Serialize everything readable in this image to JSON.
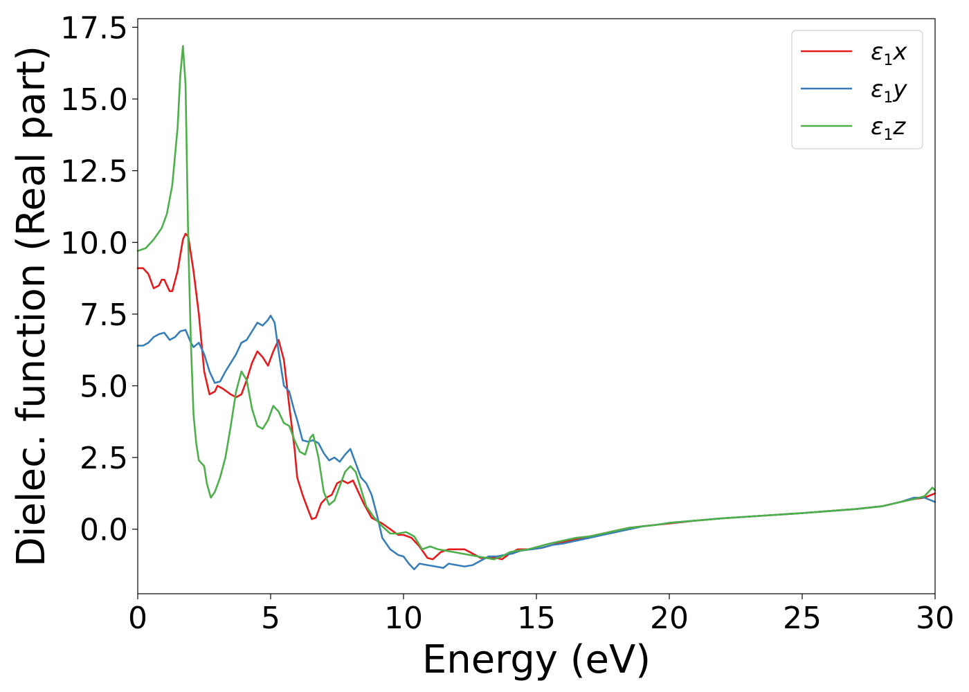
{
  "chart_data": {
    "type": "line",
    "title": "",
    "xlabel": "Energy (eV)",
    "ylabel": "Dielec. function (Real part)",
    "xlim": [
      0,
      30
    ],
    "ylim": [
      -2.25,
      17.8
    ],
    "xticks": [
      0,
      5,
      10,
      15,
      20,
      25,
      30
    ],
    "xtick_labels": [
      "0",
      "5",
      "10",
      "15",
      "20",
      "25",
      "30"
    ],
    "yticks": [
      0.0,
      2.5,
      5.0,
      7.5,
      10.0,
      12.5,
      15.0,
      17.5
    ],
    "ytick_labels": [
      "0.0",
      "2.5",
      "5.0",
      "7.5",
      "10.0",
      "12.5",
      "15.0",
      "17.5"
    ],
    "grid": false,
    "legend_position": "top-right",
    "series": [
      {
        "name": "ε1x",
        "legend_main": "ε",
        "legend_sub": "1",
        "legend_var": "x",
        "color": "#e41a1c",
        "points": [
          [
            0,
            9.1
          ],
          [
            0.2,
            9.1
          ],
          [
            0.4,
            8.9
          ],
          [
            0.6,
            8.4
          ],
          [
            0.8,
            8.5
          ],
          [
            0.9,
            8.7
          ],
          [
            1.0,
            8.7
          ],
          [
            1.1,
            8.5
          ],
          [
            1.2,
            8.3
          ],
          [
            1.3,
            8.3
          ],
          [
            1.5,
            9.0
          ],
          [
            1.7,
            10.1
          ],
          [
            1.8,
            10.3
          ],
          [
            1.9,
            10.2
          ],
          [
            2.1,
            9.0
          ],
          [
            2.3,
            7.5
          ],
          [
            2.5,
            5.5
          ],
          [
            2.7,
            4.7
          ],
          [
            2.9,
            4.8
          ],
          [
            3.0,
            5.0
          ],
          [
            3.2,
            4.9
          ],
          [
            3.5,
            4.7
          ],
          [
            3.7,
            4.6
          ],
          [
            3.9,
            4.7
          ],
          [
            4.1,
            5.2
          ],
          [
            4.3,
            5.8
          ],
          [
            4.5,
            6.2
          ],
          [
            4.7,
            6.0
          ],
          [
            4.9,
            5.7
          ],
          [
            5.1,
            6.2
          ],
          [
            5.3,
            6.6
          ],
          [
            5.5,
            5.9
          ],
          [
            5.7,
            4.3
          ],
          [
            5.9,
            2.8
          ],
          [
            6.0,
            1.8
          ],
          [
            6.2,
            1.2
          ],
          [
            6.4,
            0.7
          ],
          [
            6.55,
            0.35
          ],
          [
            6.7,
            0.4
          ],
          [
            6.9,
            0.9
          ],
          [
            7.1,
            1.1
          ],
          [
            7.3,
            1.2
          ],
          [
            7.5,
            1.6
          ],
          [
            7.7,
            1.7
          ],
          [
            7.9,
            1.6
          ],
          [
            8.1,
            1.7
          ],
          [
            8.3,
            1.3
          ],
          [
            8.5,
            0.9
          ],
          [
            8.8,
            0.4
          ],
          [
            9.2,
            0.2
          ],
          [
            9.5,
            0.0
          ],
          [
            9.8,
            -0.2
          ],
          [
            10.0,
            -0.2
          ],
          [
            10.3,
            -0.3
          ],
          [
            10.6,
            -0.6
          ],
          [
            10.9,
            -1.0
          ],
          [
            11.1,
            -1.05
          ],
          [
            11.4,
            -0.8
          ],
          [
            11.7,
            -0.7
          ],
          [
            12.0,
            -0.7
          ],
          [
            12.3,
            -0.7
          ],
          [
            12.6,
            -0.85
          ],
          [
            12.9,
            -1.0
          ],
          [
            13.2,
            -1.0
          ],
          [
            13.5,
            -1.0
          ],
          [
            13.7,
            -1.05
          ],
          [
            14.0,
            -0.85
          ],
          [
            14.3,
            -0.7
          ],
          [
            14.8,
            -0.7
          ],
          [
            15.2,
            -0.65
          ],
          [
            15.6,
            -0.55
          ],
          [
            16.0,
            -0.45
          ],
          [
            16.5,
            -0.35
          ],
          [
            17.0,
            -0.25
          ],
          [
            17.5,
            -0.15
          ],
          [
            18.0,
            -0.05
          ],
          [
            18.5,
            0.05
          ],
          [
            19.0,
            0.1
          ],
          [
            19.5,
            0.15
          ],
          [
            20.0,
            0.2
          ],
          [
            21.0,
            0.3
          ],
          [
            22.0,
            0.38
          ],
          [
            23.0,
            0.44
          ],
          [
            24.0,
            0.5
          ],
          [
            25.0,
            0.56
          ],
          [
            26.0,
            0.63
          ],
          [
            27.0,
            0.7
          ],
          [
            28.0,
            0.8
          ],
          [
            28.7,
            0.95
          ],
          [
            29.2,
            1.05
          ],
          [
            29.6,
            1.1
          ],
          [
            30.0,
            1.25
          ]
        ]
      },
      {
        "name": "ε1y",
        "legend_main": "ε",
        "legend_sub": "1",
        "legend_var": "y",
        "color": "#377eb8",
        "points": [
          [
            0,
            6.4
          ],
          [
            0.2,
            6.4
          ],
          [
            0.4,
            6.5
          ],
          [
            0.6,
            6.7
          ],
          [
            0.8,
            6.8
          ],
          [
            1.0,
            6.85
          ],
          [
            1.2,
            6.6
          ],
          [
            1.4,
            6.7
          ],
          [
            1.6,
            6.9
          ],
          [
            1.8,
            6.95
          ],
          [
            2.0,
            6.5
          ],
          [
            2.1,
            6.35
          ],
          [
            2.3,
            6.5
          ],
          [
            2.5,
            6.1
          ],
          [
            2.7,
            5.5
          ],
          [
            2.9,
            5.1
          ],
          [
            3.1,
            5.15
          ],
          [
            3.3,
            5.5
          ],
          [
            3.5,
            5.8
          ],
          [
            3.7,
            6.1
          ],
          [
            3.9,
            6.5
          ],
          [
            4.1,
            6.6
          ],
          [
            4.3,
            6.9
          ],
          [
            4.5,
            7.2
          ],
          [
            4.7,
            7.1
          ],
          [
            4.9,
            7.3
          ],
          [
            5.0,
            7.45
          ],
          [
            5.15,
            7.2
          ],
          [
            5.3,
            6.2
          ],
          [
            5.5,
            5.0
          ],
          [
            5.7,
            4.8
          ],
          [
            5.9,
            4.1
          ],
          [
            6.0,
            3.8
          ],
          [
            6.2,
            3.1
          ],
          [
            6.4,
            3.05
          ],
          [
            6.6,
            3.1
          ],
          [
            6.8,
            3.0
          ],
          [
            7.0,
            2.65
          ],
          [
            7.2,
            2.4
          ],
          [
            7.4,
            2.5
          ],
          [
            7.6,
            2.35
          ],
          [
            7.8,
            2.6
          ],
          [
            8.0,
            2.8
          ],
          [
            8.2,
            2.3
          ],
          [
            8.4,
            1.8
          ],
          [
            8.6,
            1.6
          ],
          [
            8.8,
            1.2
          ],
          [
            9.0,
            0.5
          ],
          [
            9.2,
            -0.3
          ],
          [
            9.5,
            -0.7
          ],
          [
            9.8,
            -0.9
          ],
          [
            10.0,
            -0.95
          ],
          [
            10.2,
            -1.2
          ],
          [
            10.4,
            -1.4
          ],
          [
            10.6,
            -1.2
          ],
          [
            10.9,
            -1.25
          ],
          [
            11.2,
            -1.3
          ],
          [
            11.5,
            -1.35
          ],
          [
            11.7,
            -1.2
          ],
          [
            12.0,
            -1.25
          ],
          [
            12.3,
            -1.3
          ],
          [
            12.6,
            -1.25
          ],
          [
            12.9,
            -1.1
          ],
          [
            13.2,
            -0.95
          ],
          [
            13.5,
            -0.95
          ],
          [
            13.8,
            -0.9
          ],
          [
            14.1,
            -0.85
          ],
          [
            14.4,
            -0.75
          ],
          [
            14.8,
            -0.7
          ],
          [
            15.2,
            -0.65
          ],
          [
            15.6,
            -0.55
          ],
          [
            16.0,
            -0.5
          ],
          [
            16.5,
            -0.4
          ],
          [
            17.0,
            -0.3
          ],
          [
            17.5,
            -0.2
          ],
          [
            18.0,
            -0.1
          ],
          [
            18.5,
            0.0
          ],
          [
            19.0,
            0.1
          ],
          [
            19.5,
            0.15
          ],
          [
            20.0,
            0.22
          ],
          [
            21.0,
            0.3
          ],
          [
            22.0,
            0.38
          ],
          [
            23.0,
            0.44
          ],
          [
            24.0,
            0.5
          ],
          [
            25.0,
            0.56
          ],
          [
            26.0,
            0.63
          ],
          [
            27.0,
            0.7
          ],
          [
            28.0,
            0.8
          ],
          [
            28.7,
            0.95
          ],
          [
            29.2,
            1.1
          ],
          [
            29.6,
            1.1
          ],
          [
            30.0,
            0.95
          ]
        ]
      },
      {
        "name": "ε1z",
        "legend_main": "ε",
        "legend_sub": "1",
        "legend_var": "z",
        "color": "#4daf4a",
        "points": [
          [
            0,
            9.7
          ],
          [
            0.3,
            9.8
          ],
          [
            0.6,
            10.1
          ],
          [
            0.9,
            10.5
          ],
          [
            1.1,
            11.0
          ],
          [
            1.3,
            12.0
          ],
          [
            1.5,
            14.0
          ],
          [
            1.6,
            15.8
          ],
          [
            1.7,
            16.85
          ],
          [
            1.8,
            15.5
          ],
          [
            1.9,
            10.0
          ],
          [
            2.0,
            6.5
          ],
          [
            2.1,
            4.0
          ],
          [
            2.2,
            3.0
          ],
          [
            2.3,
            2.4
          ],
          [
            2.5,
            2.2
          ],
          [
            2.6,
            1.6
          ],
          [
            2.75,
            1.1
          ],
          [
            2.9,
            1.3
          ],
          [
            3.1,
            1.8
          ],
          [
            3.3,
            2.5
          ],
          [
            3.5,
            3.6
          ],
          [
            3.7,
            4.8
          ],
          [
            3.9,
            5.5
          ],
          [
            4.1,
            5.2
          ],
          [
            4.3,
            4.2
          ],
          [
            4.5,
            3.6
          ],
          [
            4.7,
            3.5
          ],
          [
            4.9,
            3.8
          ],
          [
            5.1,
            4.3
          ],
          [
            5.3,
            4.1
          ],
          [
            5.5,
            3.7
          ],
          [
            5.7,
            3.6
          ],
          [
            5.9,
            3.1
          ],
          [
            6.1,
            2.7
          ],
          [
            6.3,
            2.6
          ],
          [
            6.5,
            3.2
          ],
          [
            6.6,
            3.3
          ],
          [
            6.8,
            2.5
          ],
          [
            7.0,
            1.3
          ],
          [
            7.2,
            0.85
          ],
          [
            7.4,
            1.0
          ],
          [
            7.6,
            1.5
          ],
          [
            7.8,
            2.0
          ],
          [
            8.0,
            2.2
          ],
          [
            8.2,
            2.0
          ],
          [
            8.4,
            1.4
          ],
          [
            8.6,
            0.8
          ],
          [
            8.9,
            0.4
          ],
          [
            9.2,
            0.1
          ],
          [
            9.5,
            -0.15
          ],
          [
            9.8,
            -0.15
          ],
          [
            10.1,
            -0.1
          ],
          [
            10.4,
            -0.25
          ],
          [
            10.7,
            -0.7
          ],
          [
            11.0,
            -0.6
          ],
          [
            11.3,
            -0.7
          ],
          [
            11.6,
            -0.75
          ],
          [
            11.9,
            -0.8
          ],
          [
            12.2,
            -0.85
          ],
          [
            12.5,
            -0.9
          ],
          [
            12.8,
            -0.95
          ],
          [
            13.1,
            -1.0
          ],
          [
            13.4,
            -1.05
          ],
          [
            13.7,
            -0.95
          ],
          [
            14.0,
            -0.8
          ],
          [
            14.3,
            -0.75
          ],
          [
            14.7,
            -0.7
          ],
          [
            15.1,
            -0.6
          ],
          [
            15.5,
            -0.5
          ],
          [
            16.0,
            -0.4
          ],
          [
            16.5,
            -0.3
          ],
          [
            17.0,
            -0.25
          ],
          [
            17.5,
            -0.15
          ],
          [
            18.0,
            -0.05
          ],
          [
            18.5,
            0.05
          ],
          [
            19.0,
            0.1
          ],
          [
            19.5,
            0.15
          ],
          [
            20.0,
            0.22
          ],
          [
            21.0,
            0.3
          ],
          [
            22.0,
            0.38
          ],
          [
            23.0,
            0.44
          ],
          [
            24.0,
            0.5
          ],
          [
            25.0,
            0.56
          ],
          [
            26.0,
            0.63
          ],
          [
            27.0,
            0.7
          ],
          [
            28.0,
            0.8
          ],
          [
            28.7,
            0.95
          ],
          [
            29.2,
            1.05
          ],
          [
            29.6,
            1.15
          ],
          [
            29.9,
            1.45
          ],
          [
            30.0,
            1.35
          ]
        ]
      }
    ]
  }
}
